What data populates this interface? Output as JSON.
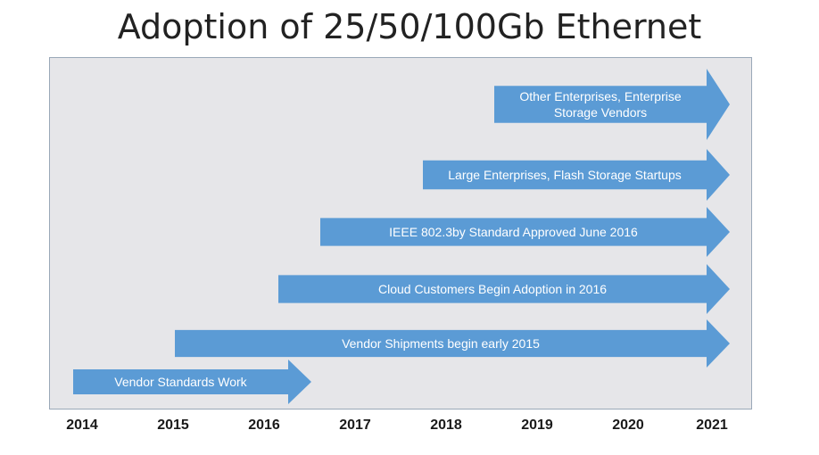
{
  "title": "Adoption of 25/50/100Gb Ethernet",
  "colors": {
    "arrow_fill": "#5b9bd5",
    "plot_background": "#e6e6e9",
    "arrow_text": "#ffffff"
  },
  "years": [
    "2014",
    "2015",
    "2016",
    "2017",
    "2018",
    "2019",
    "2020",
    "2021"
  ],
  "arrows": [
    {
      "label": "Other Enterprises, Enterprise Storage Vendors"
    },
    {
      "label": "Large Enterprises, Flash Storage Startups"
    },
    {
      "label": "IEEE 802.3by Standard Approved June 2016"
    },
    {
      "label": "Cloud Customers Begin Adoption in 2016"
    },
    {
      "label": "Vendor Shipments begin early 2015"
    },
    {
      "label": "Vendor Standards Work"
    }
  ]
}
